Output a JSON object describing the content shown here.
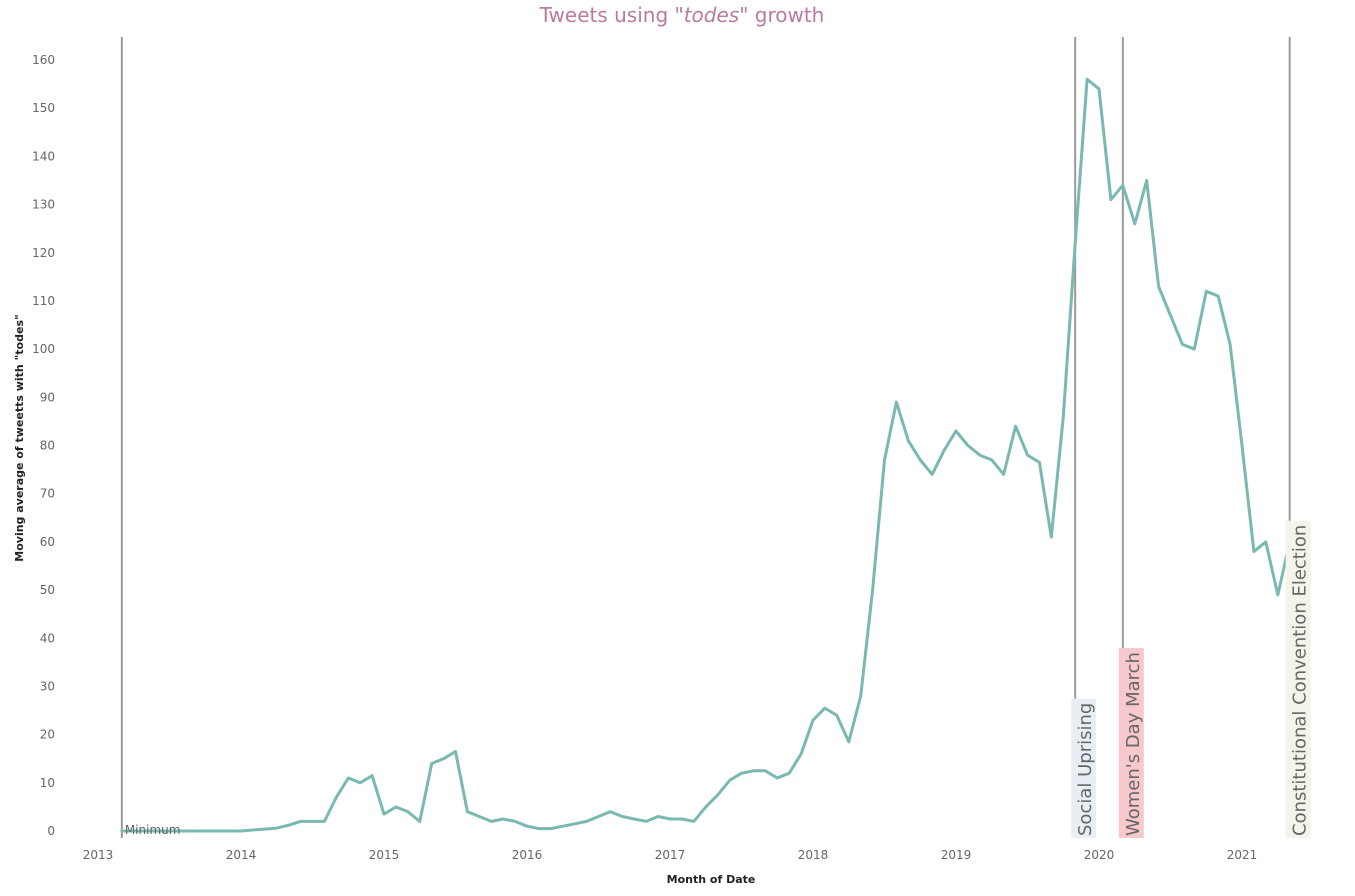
{
  "chart_data": {
    "type": "line",
    "title": {
      "prefix": "Tweets using \"",
      "emphasis": "todes",
      "suffix": "\" growth"
    },
    "xlabel": "Month of Date",
    "ylabel": "Moving average of tweetts with \"todes\"",
    "ylim": [
      0,
      160
    ],
    "yticks": [
      0,
      10,
      20,
      30,
      40,
      50,
      60,
      70,
      80,
      90,
      100,
      110,
      120,
      130,
      140,
      150,
      160
    ],
    "xticks": [
      "2013",
      "2014",
      "2015",
      "2016",
      "2017",
      "2018",
      "2019",
      "2020",
      "2021"
    ],
    "grid": false,
    "colors": {
      "series": "#7ab8b2",
      "title": "#b97aa3",
      "reference_line": "#9a9a9a",
      "social_uprising_bg": "#e8eef3",
      "womens_day_bg": "#f7c9cc",
      "constitutional_bg": "#f4f4ea"
    },
    "series": [
      {
        "x": [
          "2013-03",
          "2013-04",
          "2013-05",
          "2013-06",
          "2013-07",
          "2013-08",
          "2013-09",
          "2013-10",
          "2013-11",
          "2013-12",
          "2014-01",
          "2014-02",
          "2014-03",
          "2014-04",
          "2014-05",
          "2014-06",
          "2014-07",
          "2014-08",
          "2014-09",
          "2014-10",
          "2014-11",
          "2014-12",
          "2015-01",
          "2015-02",
          "2015-03",
          "2015-04",
          "2015-05",
          "2015-06",
          "2015-07",
          "2015-08",
          "2015-09",
          "2015-10",
          "2015-11",
          "2015-12",
          "2016-01",
          "2016-02",
          "2016-03",
          "2016-04",
          "2016-05",
          "2016-06",
          "2016-07",
          "2016-08",
          "2016-09",
          "2016-10",
          "2016-11",
          "2016-12",
          "2017-01",
          "2017-02",
          "2017-03",
          "2017-04",
          "2017-05",
          "2017-06",
          "2017-07",
          "2017-08",
          "2017-09",
          "2017-10",
          "2017-11",
          "2017-12",
          "2018-01",
          "2018-02",
          "2018-03",
          "2018-04",
          "2018-05",
          "2018-06",
          "2018-07",
          "2018-08",
          "2018-09",
          "2018-10",
          "2018-11",
          "2018-12",
          "2019-01",
          "2019-02",
          "2019-03",
          "2019-04",
          "2019-05",
          "2019-06",
          "2019-07",
          "2019-08",
          "2019-09",
          "2019-10",
          "2019-11",
          "2019-12",
          "2020-01",
          "2020-02",
          "2020-03",
          "2020-04",
          "2020-05",
          "2020-06",
          "2020-07",
          "2020-08",
          "2020-09",
          "2020-10",
          "2020-11",
          "2020-12",
          "2021-01",
          "2021-02",
          "2021-03",
          "2021-04",
          "2021-05"
        ],
        "values": [
          0,
          0,
          0,
          0,
          0,
          0,
          0,
          0,
          0,
          0,
          0,
          0.2,
          0.4,
          0.6,
          1.2,
          2,
          2,
          2,
          7,
          11,
          10,
          11.5,
          3.5,
          5,
          4,
          2,
          14,
          15,
          16.5,
          4,
          3,
          2,
          2.5,
          2,
          1,
          0.5,
          0.5,
          1,
          1.5,
          2,
          3,
          4,
          3,
          2.5,
          2,
          3,
          2.5,
          2.5,
          2,
          5,
          7.5,
          10.5,
          12,
          12.5,
          12.5,
          11,
          12,
          16,
          23,
          25.5,
          24,
          18.5,
          28,
          50,
          77,
          89,
          81,
          77,
          74,
          79,
          83,
          80,
          78,
          77,
          74,
          84,
          78,
          76.5,
          61,
          86,
          122,
          156,
          154,
          131,
          134,
          126,
          135,
          113,
          107,
          101,
          100,
          112,
          111,
          101,
          80,
          58,
          60,
          49,
          60
        ]
      }
    ],
    "reference_lines": [
      {
        "date": "2013-03",
        "label": "Minimum"
      },
      {
        "date": "2019-11",
        "label": "Social Uprising"
      },
      {
        "date": "2020-03",
        "label": "Women's Day March"
      },
      {
        "date": "2021-05",
        "label": "Constitutional Convention Election"
      }
    ]
  }
}
